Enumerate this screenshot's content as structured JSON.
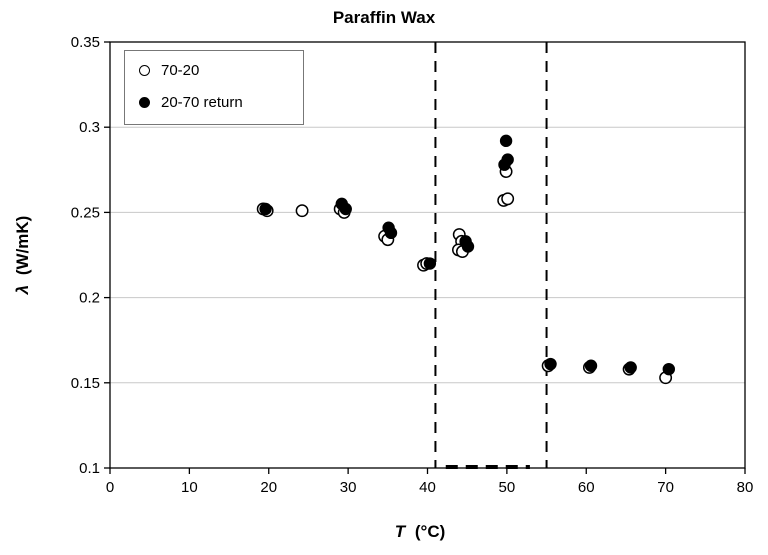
{
  "chart_data": {
    "type": "scatter",
    "title": "Paraffin Wax",
    "xlabel": {
      "var": "T",
      "unit": "(°C)"
    },
    "ylabel": {
      "var": "λ",
      "unit": "(W/mK)"
    },
    "xlim": [
      0,
      80
    ],
    "ylim": [
      0.1,
      0.35
    ],
    "xticks": {
      "values": [
        0,
        10,
        20,
        30,
        40,
        50,
        60,
        70,
        80
      ],
      "labels": [
        "0",
        "10",
        "20",
        "30",
        "40",
        "50",
        "60",
        "70",
        "80"
      ]
    },
    "yticks": {
      "values": [
        0.1,
        0.15,
        0.2,
        0.25,
        0.3,
        0.35
      ],
      "labels": [
        "0.1",
        "0.15",
        "0.2",
        "0.25",
        "0.3",
        "0.35"
      ]
    },
    "grid": "horizontal",
    "legend_position": "top-left-inside",
    "vlines": [
      {
        "x": 41,
        "style": "dashed"
      },
      {
        "x": 55,
        "style": "dashed"
      }
    ],
    "bottom_dashes": {
      "x1": 42.3,
      "x2": 52.9,
      "y": 0.1,
      "style": "dashed"
    },
    "colors": {
      "axis": "#000000",
      "grid": "#c8c8c8",
      "open_fill": "#ffffff",
      "filled_fill": "#000000",
      "dashed_line": "#000000"
    },
    "series": [
      {
        "name": "70-20",
        "marker": "open-circle",
        "points": [
          [
            19.3,
            0.252
          ],
          [
            19.8,
            0.251
          ],
          [
            24.2,
            0.251
          ],
          [
            29.0,
            0.252
          ],
          [
            29.5,
            0.25
          ],
          [
            34.6,
            0.236
          ],
          [
            35.0,
            0.234
          ],
          [
            39.5,
            0.219
          ],
          [
            39.9,
            0.22
          ],
          [
            44.0,
            0.237
          ],
          [
            44.3,
            0.233
          ],
          [
            43.9,
            0.228
          ],
          [
            44.4,
            0.227
          ],
          [
            49.6,
            0.257
          ],
          [
            50.1,
            0.258
          ],
          [
            49.9,
            0.274
          ],
          [
            55.2,
            0.16
          ],
          [
            60.4,
            0.159
          ],
          [
            65.4,
            0.158
          ],
          [
            70.0,
            0.153
          ]
        ]
      },
      {
        "name": "20-70 return",
        "marker": "filled-circle",
        "points": [
          [
            19.6,
            0.252
          ],
          [
            29.2,
            0.255
          ],
          [
            29.7,
            0.252
          ],
          [
            35.1,
            0.241
          ],
          [
            35.4,
            0.238
          ],
          [
            40.3,
            0.22
          ],
          [
            44.8,
            0.233
          ],
          [
            45.1,
            0.23
          ],
          [
            49.7,
            0.278
          ],
          [
            50.1,
            0.281
          ],
          [
            49.9,
            0.292
          ],
          [
            55.5,
            0.161
          ],
          [
            60.6,
            0.16
          ],
          [
            65.6,
            0.159
          ],
          [
            70.4,
            0.158
          ]
        ]
      }
    ]
  }
}
